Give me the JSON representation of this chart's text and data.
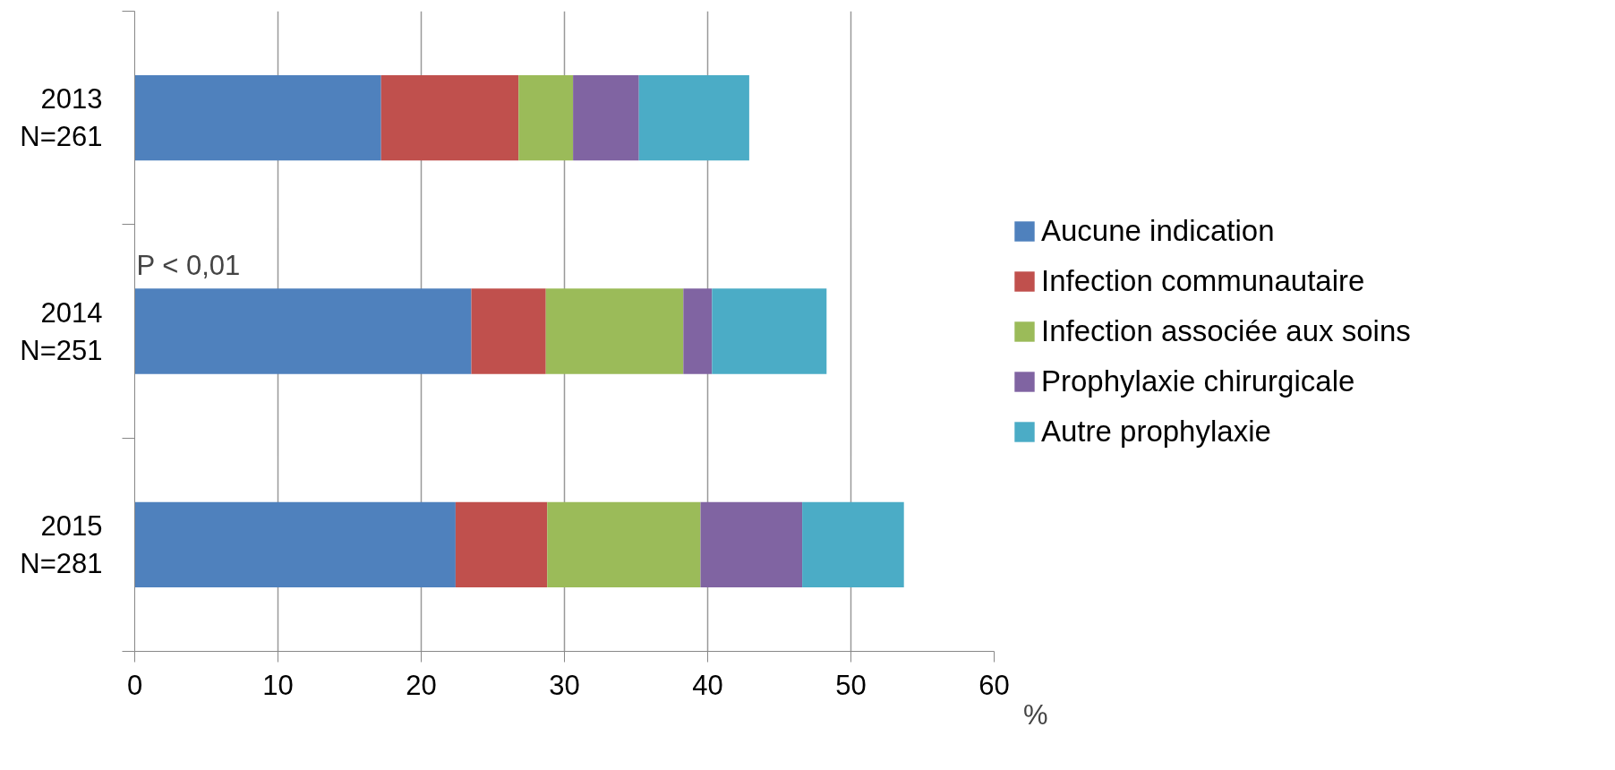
{
  "chart_data": {
    "type": "bar",
    "orientation": "horizontal",
    "stacked": true,
    "categories": [
      "2013\nN=261",
      "2014\nN=251",
      "2015\nN=281"
    ],
    "series": [
      {
        "name": "Aucune indication",
        "color": "#4f81bd",
        "values": [
          17.2,
          23.5,
          22.4
        ]
      },
      {
        "name": "Infection communautaire",
        "color": "#c0504d",
        "values": [
          9.6,
          5.2,
          6.4
        ]
      },
      {
        "name": "Infection associée aux soins",
        "color": "#9bbb59",
        "values": [
          3.8,
          9.6,
          10.7
        ]
      },
      {
        "name": "Prophylaxie chirurgicale",
        "color": "#8064a2",
        "values": [
          4.6,
          2.0,
          7.1
        ]
      },
      {
        "name": "Autre prophylaxie",
        "color": "#4bacc6",
        "values": [
          7.7,
          8.0,
          7.1
        ]
      }
    ],
    "xlim": [
      0,
      60
    ],
    "xticks": [
      0,
      10,
      20,
      30,
      40,
      50,
      60
    ],
    "xlabel": "%",
    "annotations": [
      "P < 0,01"
    ],
    "grid": "x",
    "legend": "right"
  }
}
